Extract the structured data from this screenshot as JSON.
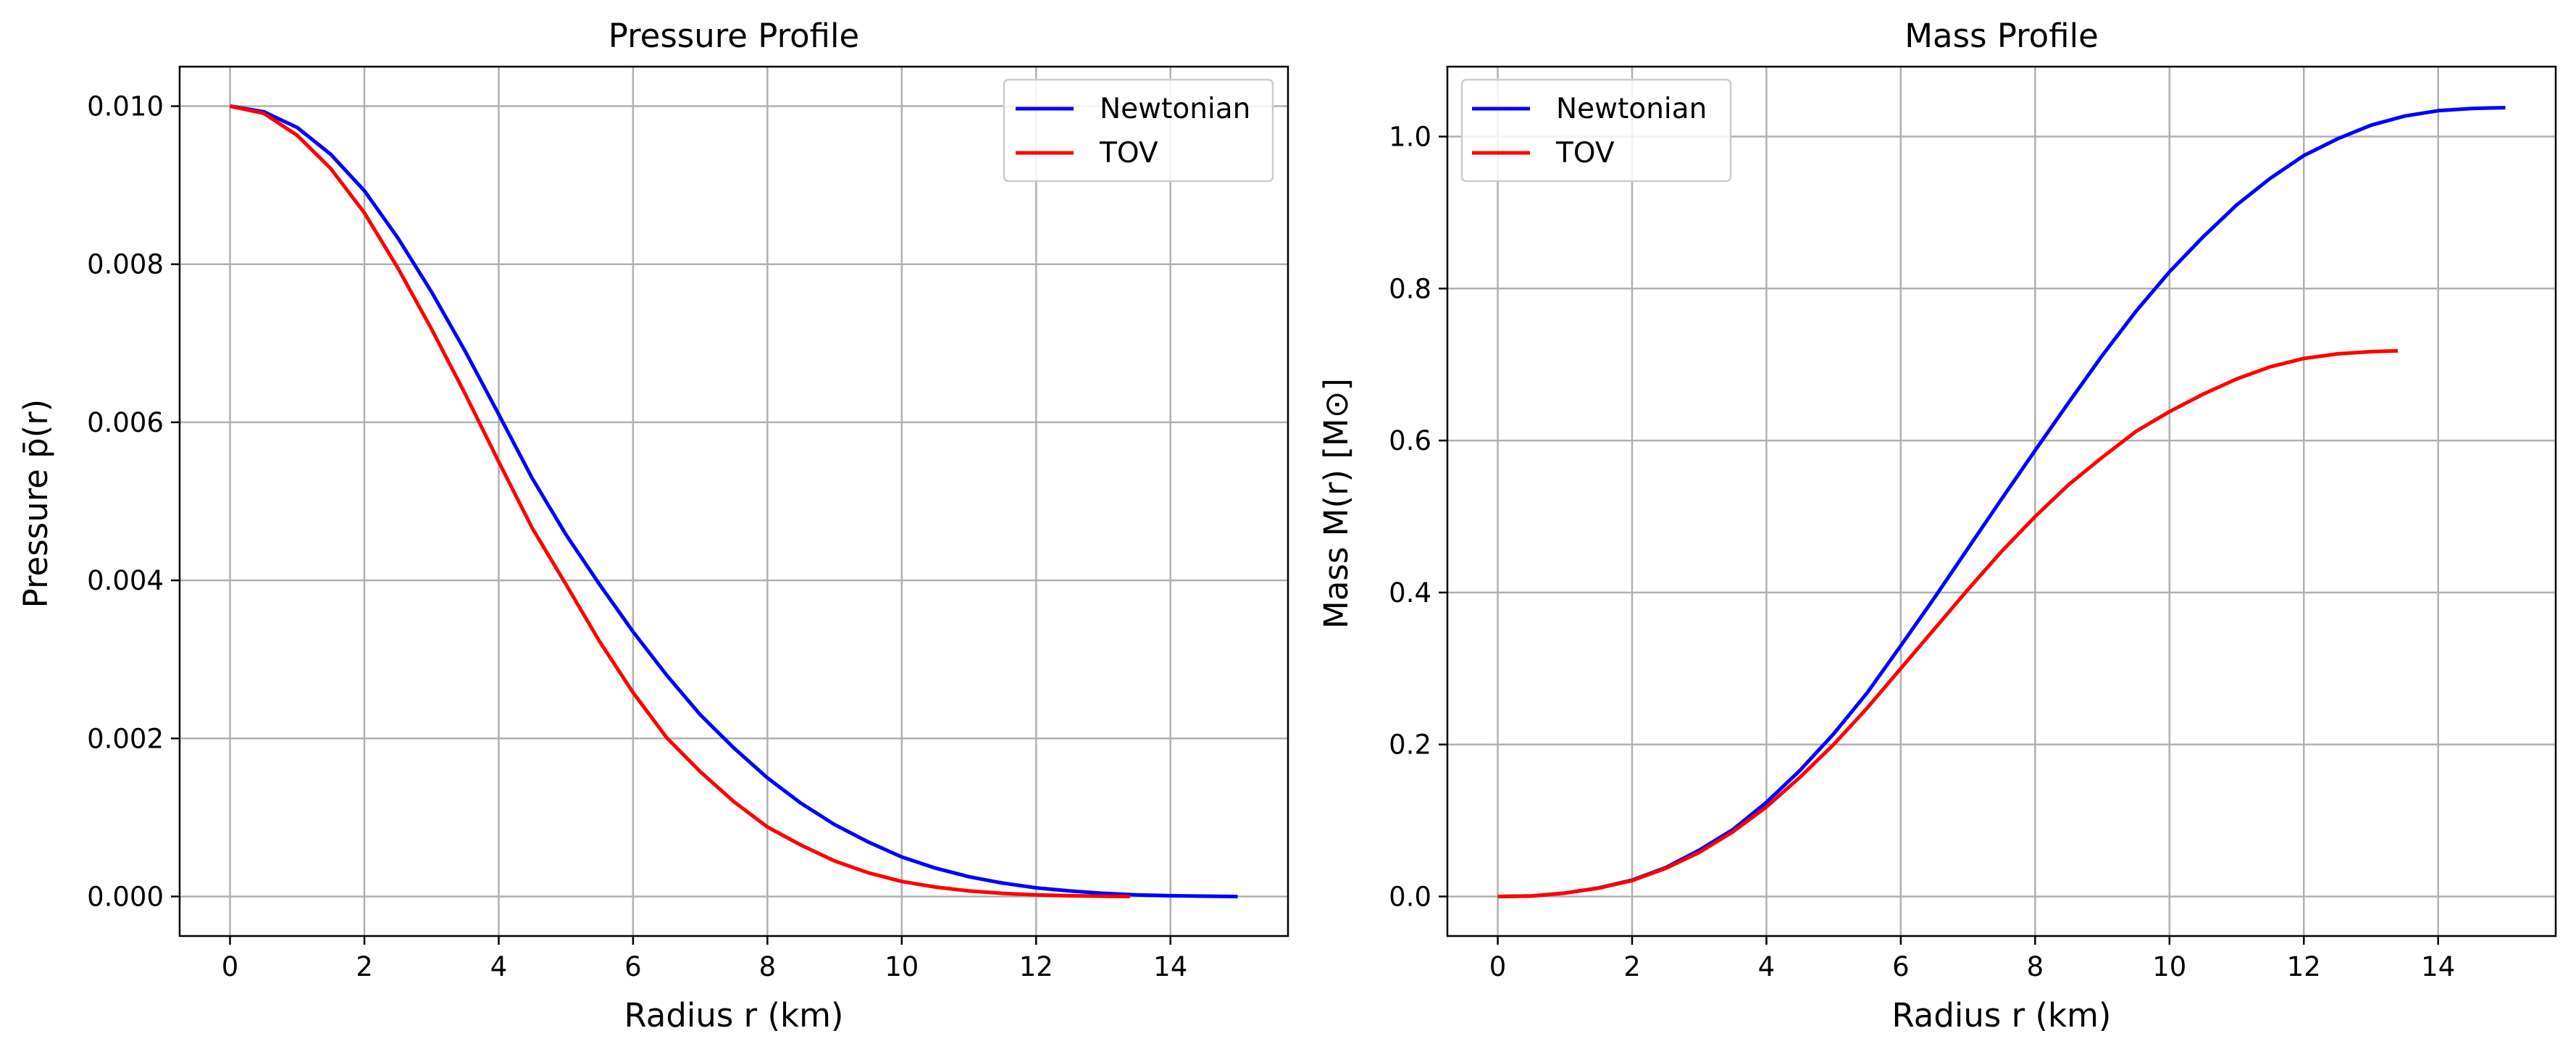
{
  "chart_data": [
    {
      "type": "line",
      "title": "Pressure Profile",
      "xlabel": "Radius r (km)",
      "ylabel": "Pressure p̄(r)",
      "xlim": [
        -0.75,
        15.75
      ],
      "ylim": [
        -0.0005,
        0.0105
      ],
      "xticks": [
        0,
        2,
        4,
        6,
        8,
        10,
        12,
        14
      ],
      "xtick_labels": [
        "0",
        "2",
        "4",
        "6",
        "8",
        "10",
        "12",
        "14"
      ],
      "yticks": [
        0,
        0.002,
        0.004,
        0.006,
        0.008,
        0.01
      ],
      "ytick_labels": [
        "0.000",
        "0.002",
        "0.004",
        "0.006",
        "0.008",
        "0.010"
      ],
      "grid": true,
      "legend": "top-right",
      "series": [
        {
          "name": "Newtonian",
          "color": "#0000ff",
          "x": [
            0,
            0.5,
            1,
            1.5,
            2,
            2.5,
            3,
            3.5,
            4,
            4.5,
            5,
            5.5,
            6,
            6.5,
            7,
            7.5,
            8,
            8.5,
            9,
            9.5,
            10,
            10.5,
            11,
            11.5,
            12,
            12.5,
            13,
            13.5,
            14,
            14.5,
            15
          ],
          "y": [
            0.01,
            0.00993,
            0.00973,
            0.00939,
            0.00893,
            0.00833,
            0.00765,
            0.0069,
            0.0061,
            0.00529,
            0.00458,
            0.00395,
            0.00335,
            0.0028,
            0.0023,
            0.00188,
            0.0015,
            0.00118,
            0.00091,
            0.00069,
            0.0005,
            0.00036,
            0.00025,
            0.00017,
            0.00011,
            7e-05,
            4e-05,
            2e-05,
            1e-05,
            4e-06,
            0
          ]
        },
        {
          "name": "TOV",
          "color": "#ff0000",
          "x": [
            0,
            0.5,
            1,
            1.5,
            2,
            2.5,
            3,
            3.5,
            4,
            4.5,
            5,
            5.5,
            6,
            6.5,
            7,
            7.5,
            8,
            8.5,
            9,
            9.5,
            10,
            10.5,
            11,
            11.5,
            12,
            12.5,
            13,
            13.4
          ],
          "y": [
            0.01,
            0.00991,
            0.00963,
            0.00921,
            0.00865,
            0.00795,
            0.00718,
            0.00636,
            0.0055,
            0.00466,
            0.00395,
            0.00323,
            0.00258,
            0.00201,
            0.00158,
            0.0012,
            0.00088,
            0.00065,
            0.00045,
            0.0003,
            0.00019,
            0.00012,
            7e-05,
            4e-05,
            2e-05,
            1e-05,
            3e-06,
            0
          ]
        }
      ]
    },
    {
      "type": "line",
      "title": "Mass Profile",
      "xlabel": "Radius r (km)",
      "ylabel": "Mass M(r) [M⊙]",
      "xlim": [
        -0.75,
        15.75
      ],
      "ylim": [
        -0.052,
        1.092
      ],
      "xticks": [
        0,
        2,
        4,
        6,
        8,
        10,
        12,
        14
      ],
      "xtick_labels": [
        "0",
        "2",
        "4",
        "6",
        "8",
        "10",
        "12",
        "14"
      ],
      "yticks": [
        0,
        0.2,
        0.4,
        0.6,
        0.8,
        1.0
      ],
      "ytick_labels": [
        "0.0",
        "0.2",
        "0.4",
        "0.6",
        "0.8",
        "1.0"
      ],
      "grid": true,
      "legend": "top-left",
      "series": [
        {
          "name": "Newtonian",
          "color": "#0000ff",
          "x": [
            0,
            0.5,
            1,
            1.5,
            2,
            2.5,
            3,
            3.5,
            4,
            4.5,
            5,
            5.5,
            6,
            6.5,
            7,
            7.5,
            8,
            8.5,
            9,
            9.5,
            10,
            10.5,
            11,
            11.5,
            12,
            12.5,
            13,
            13.5,
            14,
            14.5,
            15
          ],
          "y": [
            0,
            0.0006,
            0.0045,
            0.0112,
            0.0216,
            0.038,
            0.061,
            0.088,
            0.124,
            0.166,
            0.214,
            0.268,
            0.33,
            0.393,
            0.458,
            0.523,
            0.587,
            0.65,
            0.712,
            0.77,
            0.822,
            0.868,
            0.91,
            0.945,
            0.975,
            0.997,
            1.015,
            1.027,
            1.034,
            1.037,
            1.038
          ]
        },
        {
          "name": "TOV",
          "color": "#ff0000",
          "x": [
            0,
            0.5,
            1,
            1.5,
            2,
            2.5,
            3,
            3.5,
            4,
            4.5,
            5,
            5.5,
            6,
            6.5,
            7,
            7.5,
            8,
            8.5,
            9,
            9.5,
            10,
            10.5,
            11,
            11.5,
            12,
            12.5,
            13,
            13.4
          ],
          "y": [
            0,
            0.0006,
            0.0045,
            0.011,
            0.021,
            0.037,
            0.058,
            0.085,
            0.118,
            0.157,
            0.2,
            0.248,
            0.3,
            0.352,
            0.404,
            0.454,
            0.5,
            0.542,
            0.578,
            0.612,
            0.638,
            0.661,
            0.681,
            0.697,
            0.708,
            0.714,
            0.717,
            0.718
          ]
        }
      ]
    }
  ]
}
